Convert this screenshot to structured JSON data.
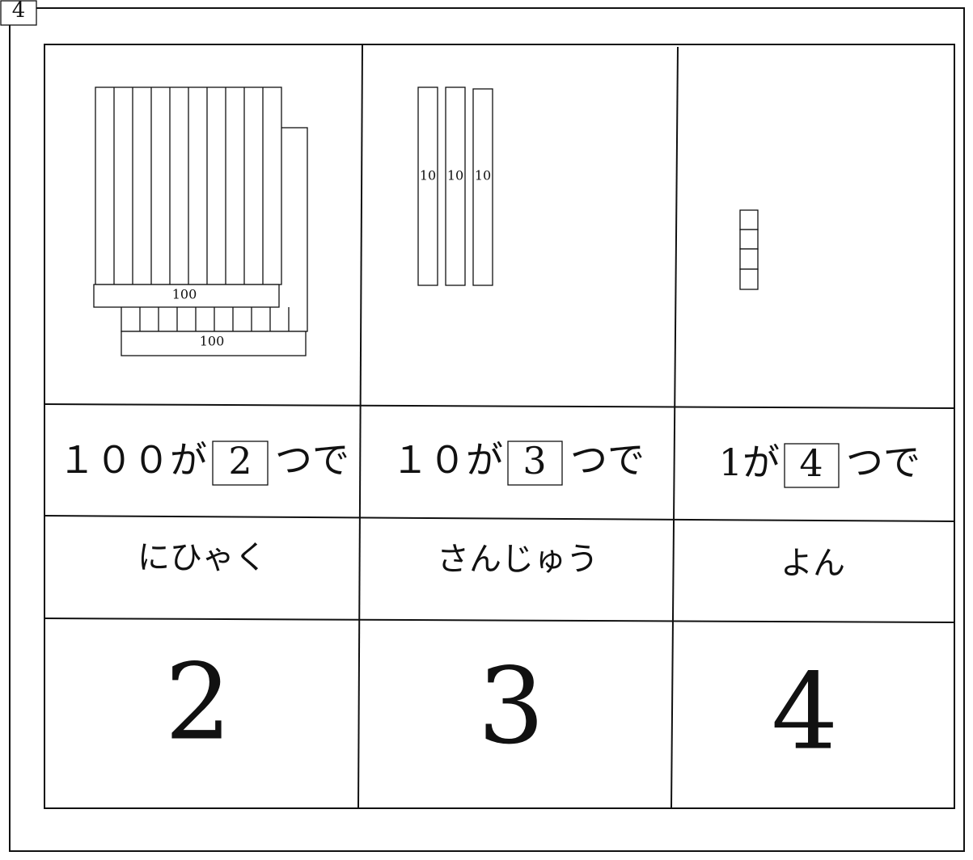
{
  "header": {
    "label": "4"
  },
  "table": {
    "columns": [
      {
        "blocks": [
          "100",
          "100"
        ],
        "count_text": "１００が",
        "box": "2",
        "suffix": "つで",
        "reading": "にひゃく",
        "digit": "2"
      },
      {
        "blocks": [
          "10",
          "10",
          "10"
        ],
        "count_text": "１０が",
        "box": "3",
        "suffix": "つで",
        "reading": "さんじゅう",
        "digit": "3"
      },
      {
        "count_text": "1が",
        "box": "4",
        "suffix": "つで",
        "reading": "よん",
        "digit": "4"
      }
    ]
  }
}
